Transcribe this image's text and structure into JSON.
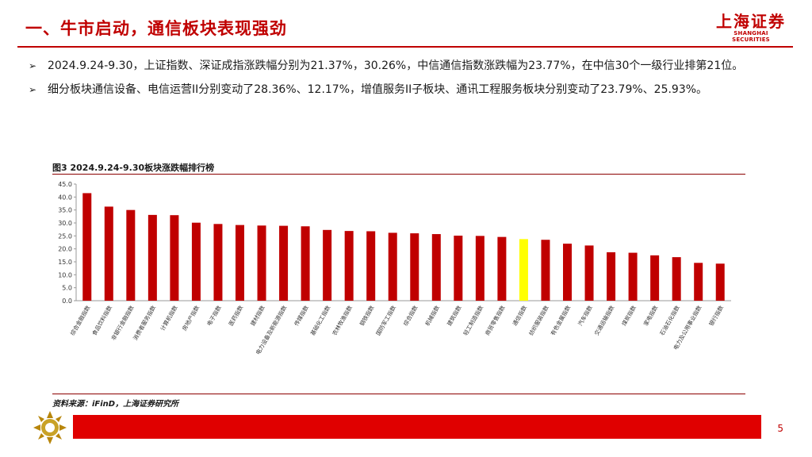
{
  "header": {
    "title": "一、牛市启动，通信板块表现强劲",
    "logo_cn": "上海证券",
    "logo_en": "SHANGHAI SECURITIES"
  },
  "bullets": [
    "2024.9.24-9.30，上证指数、深证成指涨跌幅分别为21.37%，30.26%，中信通信指数涨跌幅为23.77%，在中信30个一级行业排第21位。",
    "细分板块通信设备、电信运营II分别变动了28.36%、12.17%，增值服务II子板块、通讯工程服务板块分别变动了23.79%、25.93%。"
  ],
  "chart_title": "图3 2024.9.24-9.30板块涨跌幅排行榜",
  "source": "资料来源：iFinD，上海证券研究所",
  "page_number": "5",
  "colors": {
    "brand_red": "#c00000",
    "bar_red": "#c00000",
    "bar_highlight": "#ffff00"
  },
  "chart_data": {
    "type": "bar",
    "categories": [
      "综合金融指数",
      "食品饮料指数",
      "非银行金融指数",
      "消费者服务指数",
      "计算机指数",
      "房地产指数",
      "电子指数",
      "医药指数",
      "建材指数",
      "电力设备及新能源指数",
      "传媒指数",
      "基础化工指数",
      "农林牧渔指数",
      "钢铁指数",
      "国防军工指数",
      "综合指数",
      "机械指数",
      "建筑指数",
      "轻工制造指数",
      "商贸零售指数",
      "通信指数",
      "纺织服装指数",
      "有色金属指数",
      "汽车指数",
      "交通运输指数",
      "煤炭指数",
      "家电指数",
      "石油石化指数",
      "电力及公用事业指数",
      "银行指数"
    ],
    "values": [
      41.5,
      36.3,
      35.0,
      33.1,
      33.0,
      30.1,
      29.6,
      29.2,
      29.0,
      28.9,
      28.7,
      27.3,
      26.9,
      26.8,
      26.2,
      26.0,
      25.7,
      25.1,
      25.0,
      24.6,
      23.77,
      23.5,
      22.0,
      21.3,
      18.7,
      18.5,
      17.5,
      16.8,
      14.6,
      14.3
    ],
    "highlight_category": "通信指数",
    "y_ticks": [
      "0.0",
      "5.0",
      "10.0",
      "15.0",
      "20.0",
      "25.0",
      "30.0",
      "35.0",
      "40.0",
      "45.0"
    ],
    "ylim": [
      0,
      45
    ],
    "grid": false,
    "legend": "none"
  }
}
